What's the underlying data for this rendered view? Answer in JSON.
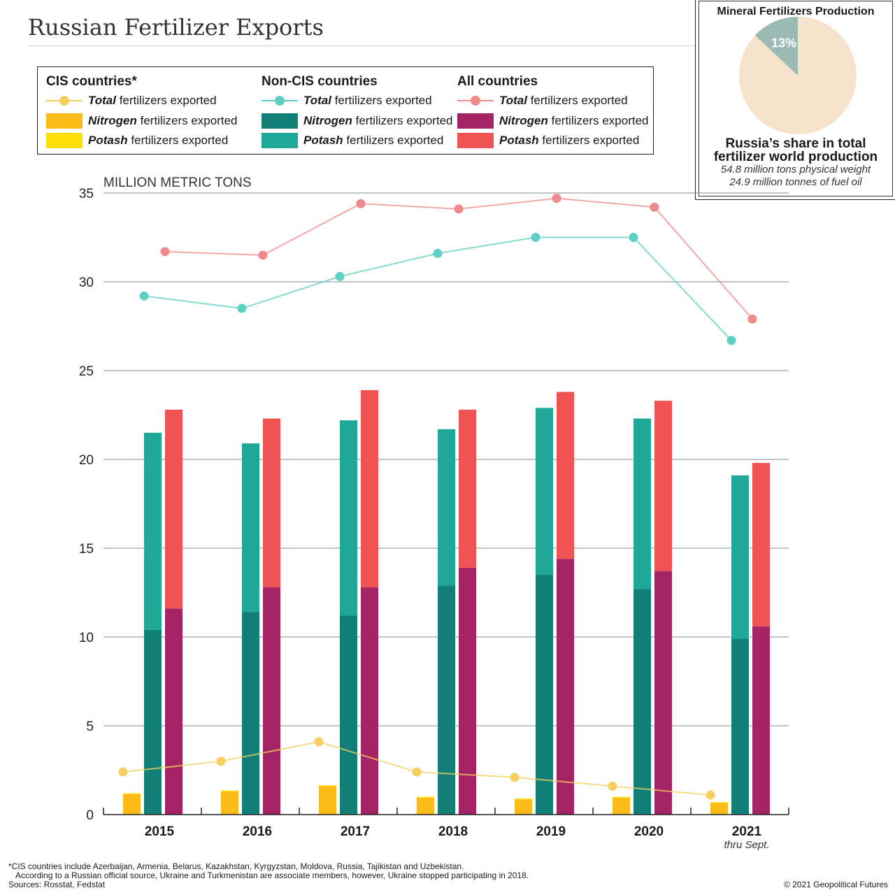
{
  "title": "Russian Fertilizer Exports",
  "legend": {
    "groups": [
      {
        "heading": "CIS countries*",
        "rows": [
          {
            "kind": "line",
            "bold": "Total",
            "rest": " fertilizers exported",
            "color": "#f6cf5e"
          },
          {
            "kind": "box",
            "bold": "Nitrogen",
            "rest": " fertilizers exported",
            "color": "#fbbc1a"
          },
          {
            "kind": "box",
            "bold": "Potash",
            "rest": " fertilizers exported",
            "color": "#ffde05"
          }
        ]
      },
      {
        "heading": "Non-CIS countries",
        "rows": [
          {
            "kind": "line",
            "bold": "Total",
            "rest": " fertilizers exported",
            "color": "#5ecfc3"
          },
          {
            "kind": "box",
            "bold": "Nitrogen",
            "rest": " fertilizers exported",
            "color": "#117f76"
          },
          {
            "kind": "box",
            "bold": "Potash",
            "rest": " fertilizers exported",
            "color": "#1fa898"
          }
        ]
      },
      {
        "heading": "All countries",
        "rows": [
          {
            "kind": "line",
            "bold": "Total",
            "rest": " fertilizers exported",
            "color": "#f08989"
          },
          {
            "kind": "box",
            "bold": "Nitrogen",
            "rest": " fertilizers exported",
            "color": "#a42365"
          },
          {
            "kind": "box",
            "bold": "Potash",
            "rest": " fertilizers exported",
            "color": "#ef5353"
          }
        ]
      }
    ]
  },
  "pie": {
    "title": "Mineral Fertilizers Production",
    "share_pct": 13,
    "label": "13%",
    "share_color": "#9bbab4",
    "rest_color": "#f5e4cb",
    "caption_head_1": "Russia’s share in total",
    "caption_head_2": "fertilizer world production",
    "caption_sub_1": "54.8 million tons physical weight",
    "caption_sub_2": "24.9 million tonnes of fuel oil"
  },
  "chart_data": {
    "type": "bar",
    "ylabel": "MILLION METRIC TONS",
    "ylim": [
      0,
      35
    ],
    "yticks": [
      0,
      5,
      10,
      15,
      20,
      25,
      30,
      35
    ],
    "categories": [
      "2015",
      "2016",
      "2017",
      "2018",
      "2019",
      "2020",
      "2021"
    ],
    "category_notes": [
      "",
      "",
      "",
      "",
      "",
      "",
      "thru Sept."
    ],
    "colors": {
      "cis_nitrogen": "#fbbc1a",
      "cis_potash": "#ffde05",
      "cis_total": "#f6cf5e",
      "noncis_nitrogen": "#117f76",
      "noncis_potash": "#1fa898",
      "noncis_total": "#5ecfc3",
      "all_nitrogen": "#a42365",
      "all_potash": "#ef5353",
      "all_total": "#f08989"
    },
    "series": [
      {
        "name": "CIS Nitrogen fertilizers exported",
        "values": [
          1.15,
          1.3,
          1.6,
          0.95,
          0.85,
          0.95,
          0.65
        ]
      },
      {
        "name": "CIS Potash fertilizers exported",
        "values": [
          0.05,
          0.05,
          0.05,
          0.05,
          0.05,
          0.05,
          0.05
        ]
      },
      {
        "name": "Non-CIS Nitrogen fertilizers exported",
        "values": [
          10.4,
          11.4,
          11.2,
          12.9,
          13.5,
          12.7,
          9.9
        ]
      },
      {
        "name": "Non-CIS Potash fertilizers exported",
        "values": [
          11.1,
          9.5,
          11.0,
          8.8,
          9.4,
          9.6,
          9.2
        ]
      },
      {
        "name": "All Nitrogen fertilizers exported",
        "values": [
          11.6,
          12.8,
          12.8,
          13.9,
          14.4,
          13.7,
          10.6
        ]
      },
      {
        "name": "All Potash fertilizers exported",
        "values": [
          11.2,
          9.5,
          11.1,
          8.9,
          9.4,
          9.6,
          9.2
        ]
      },
      {
        "name": "CIS Total fertilizers exported",
        "values": [
          2.4,
          3.0,
          4.1,
          2.4,
          2.1,
          1.6,
          1.1
        ]
      },
      {
        "name": "Non-CIS Total fertilizers exported",
        "values": [
          29.2,
          28.5,
          30.3,
          31.6,
          32.5,
          32.5,
          26.7
        ]
      },
      {
        "name": "All Total fertilizers exported",
        "values": [
          31.7,
          31.5,
          34.4,
          34.1,
          34.7,
          34.2,
          27.9
        ]
      }
    ]
  },
  "footnote_1": "*CIS countries include Azerbaijan, Armenia, Belarus, Kazakhstan, Kyrgyzstan, Moldova, Russia, Tajikistan and Uzbekistan.",
  "footnote_2": "According to a Russian official source, Ukraine and Turkmenistan are associate members, however, Ukraine stopped participating in 2018.",
  "sources": "Sources: Rosstat, Fedstat",
  "copyright": "© 2021 Geopolitical Futures"
}
